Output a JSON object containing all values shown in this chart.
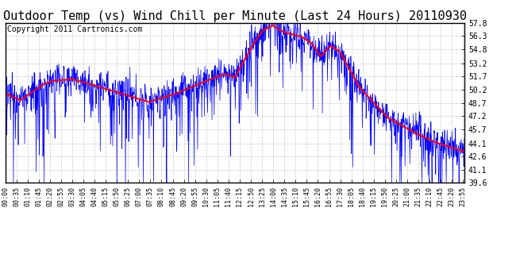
{
  "title": "Outdoor Temp (vs) Wind Chill per Minute (Last 24 Hours) 20110930",
  "copyright": "Copyright 2011 Cartronics.com",
  "yticks": [
    39.6,
    41.1,
    42.6,
    44.1,
    45.7,
    47.2,
    48.7,
    50.2,
    51.7,
    53.2,
    54.8,
    56.3,
    57.8
  ],
  "ymin": 39.6,
  "ymax": 57.8,
  "background_color": "#ffffff",
  "grid_color": "#c8c8c8",
  "blue_color": "#0000ff",
  "red_color": "#ff0000",
  "title_fontsize": 11,
  "copyright_fontsize": 7,
  "red_ctrl_t": [
    0,
    0.3,
    0.8,
    2.0,
    2.5,
    3.5,
    4.5,
    6.0,
    7.5,
    9.0,
    10.5,
    11.5,
    12.0,
    13.0,
    13.5,
    14.0,
    14.5,
    15.5,
    16.0,
    16.5,
    17.0,
    17.5,
    18.5,
    20.0,
    21.5,
    22.5,
    23.5,
    24.0
  ],
  "red_ctrl_v": [
    49.8,
    49.5,
    49.0,
    50.8,
    51.2,
    51.4,
    50.8,
    49.8,
    48.8,
    49.8,
    51.2,
    52.0,
    51.6,
    55.5,
    57.0,
    57.5,
    56.8,
    56.2,
    55.5,
    54.0,
    55.2,
    54.5,
    50.5,
    47.0,
    45.2,
    44.2,
    43.5,
    43.2
  ]
}
